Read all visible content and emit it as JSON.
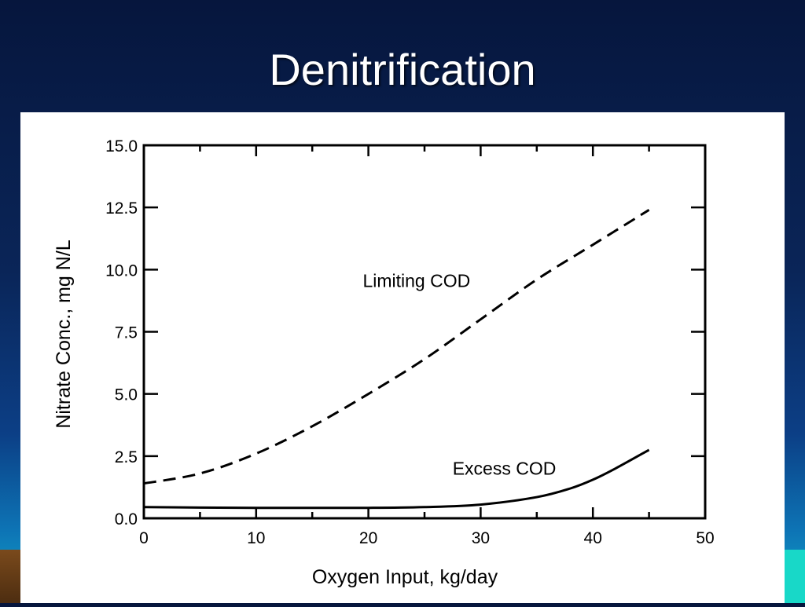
{
  "slide": {
    "title": "Denitrification"
  },
  "colors": {
    "background": "#0a2558",
    "title": "#ffffff",
    "plot": "#000000"
  },
  "chart_data": {
    "type": "line",
    "title": "",
    "xlabel": "Oxygen Input, kg/day",
    "ylabel": "Nitrate Conc., mg N/L",
    "xlim": [
      0,
      50
    ],
    "ylim": [
      0,
      15
    ],
    "x_ticks": [
      "0",
      "10",
      "20",
      "30",
      "40",
      "50"
    ],
    "y_ticks": [
      "0.0",
      "2.5",
      "5.0",
      "7.5",
      "10.0",
      "12.5",
      "15.0"
    ],
    "grid": false,
    "legend": "inline labels",
    "series": [
      {
        "name": "Limiting COD",
        "style": "dashed",
        "x": [
          0,
          5,
          10,
          15,
          20,
          25,
          30,
          35,
          40,
          45
        ],
        "y": [
          1.4,
          1.8,
          2.6,
          3.7,
          5.0,
          6.4,
          8.0,
          9.6,
          11.0,
          12.4
        ]
      },
      {
        "name": "Excess COD",
        "style": "solid",
        "x": [
          0,
          5,
          10,
          15,
          20,
          25,
          30,
          35,
          38,
          40,
          42,
          45
        ],
        "y": [
          0.45,
          0.43,
          0.42,
          0.42,
          0.42,
          0.45,
          0.55,
          0.85,
          1.2,
          1.55,
          2.0,
          2.75
        ]
      }
    ]
  }
}
